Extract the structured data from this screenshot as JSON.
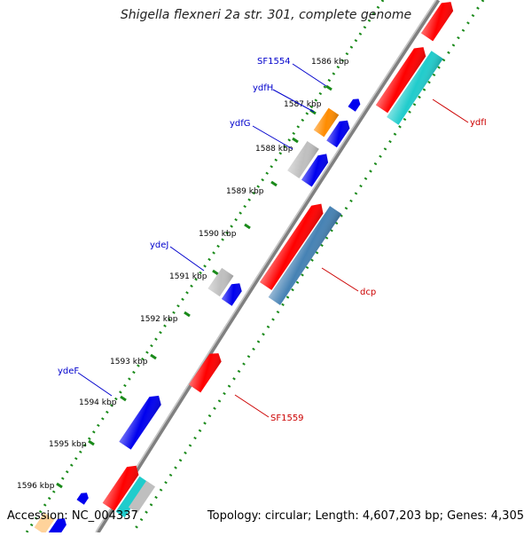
{
  "header": {
    "title": "Shigella flexneri 2a str. 301, complete genome"
  },
  "footer": {
    "accession": "Accession: NC_004337",
    "summary": "Topology: circular; Length: 4,607,203 bp; Genes: 4,305"
  },
  "colors": {
    "backbone": "#808080",
    "ticks": "#1a8a1a",
    "scale_label": "#000000",
    "gene_label_blue": "#0000cc",
    "gene_label_red": "#cc0000",
    "feature_red": "#ff0000",
    "feature_blue": "#0000ee",
    "feature_orange": "#ff8c00",
    "feature_gray": "#bfbfbf",
    "feature_cyan": "#20cccc",
    "feature_steel": "#4682b4",
    "feature_peach": "#ffd39b"
  },
  "scale_labels": [
    "1586 kbp",
    "1587 kbp",
    "1588 kbp",
    "1589 kbp",
    "1590 kbp",
    "1591 kbp",
    "1592 kbp",
    "1593 kbp",
    "1594 kbp",
    "1595 kbp",
    "1596 kbp"
  ],
  "gene_labels": [
    {
      "name": "SF1554",
      "color": "blue"
    },
    {
      "name": "ydfH",
      "color": "blue"
    },
    {
      "name": "ydfG",
      "color": "blue"
    },
    {
      "name": "ydeJ",
      "color": "blue"
    },
    {
      "name": "ydeF",
      "color": "blue"
    },
    {
      "name": "ydfI",
      "color": "red"
    },
    {
      "name": "dcp",
      "color": "red"
    },
    {
      "name": "SF1559",
      "color": "red"
    }
  ]
}
